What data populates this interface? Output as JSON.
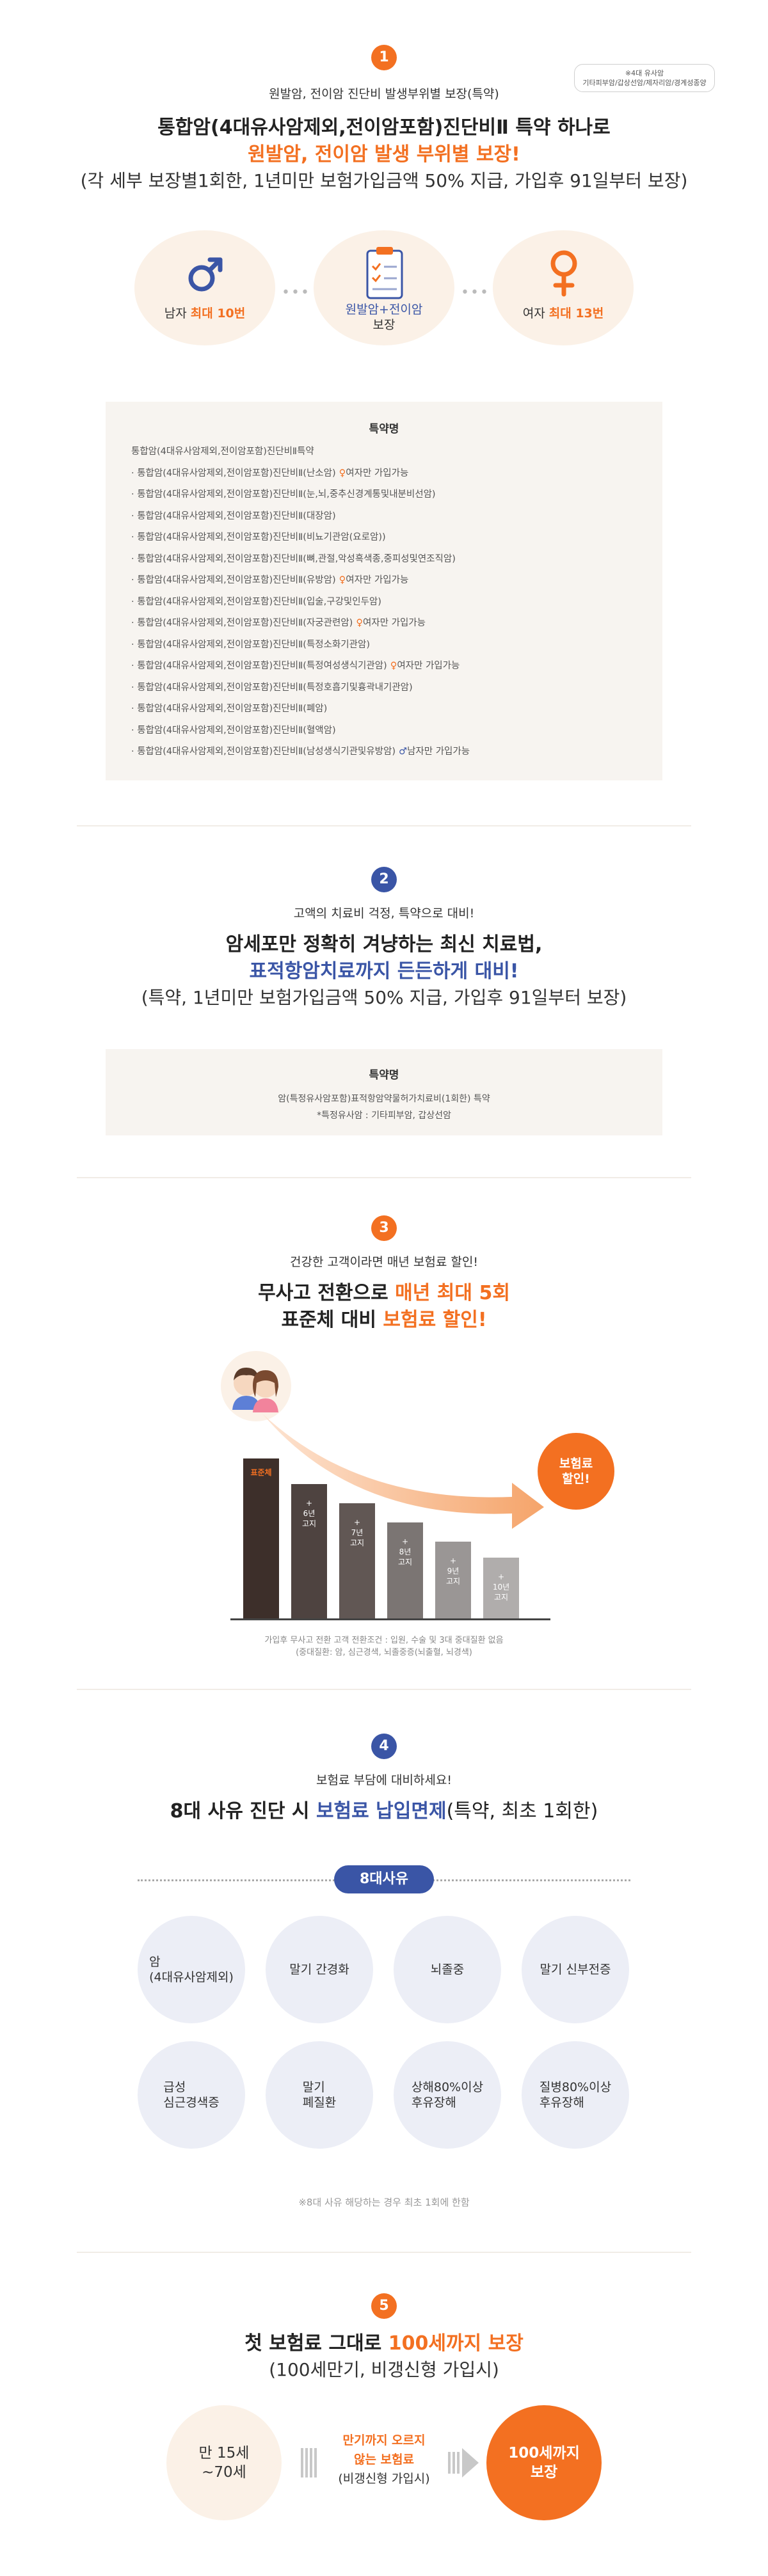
{
  "colors": {
    "accent": "#f37021",
    "brand_blue": "#3a55a6",
    "bg_cream": "#f7f4f0",
    "circle_peach": "#fbf1e7",
    "circle_gray": "#eceef6"
  },
  "s1": {
    "num": "1",
    "note_lines": [
      "※4대 유사암",
      "기타피부암/갑상선암/제자리암/경계성종양"
    ],
    "lead": "원발암, 전이암 진단비 발생부위별 보장(특약)",
    "title": "통합암(4대유사암제외,전이암포함)진단비Ⅱ 특약 하나로",
    "subtitle": "원발암, 전이암 발생 부위별 보장!",
    "note": "(각 세부 보장별1회한, 1년미만 보험가입금액 50% 지급, 가입후 91일부터 보장)",
    "male": {
      "icon": "male-icon",
      "prefix": "남자 ",
      "highlight": "최대 10번"
    },
    "center": {
      "icon": "clipboard-icon",
      "line1": "원발암+전이암",
      "line2": "보장"
    },
    "female": {
      "icon": "female-icon",
      "prefix": "여자 ",
      "highlight": "최대 13번"
    },
    "box_head": "특약명",
    "box_first": "통합암(4대유사암제외,전이암포함)진단비Ⅱ특약",
    "riders": [
      {
        "text": "통합암(4대유사암제외,전이암포함)진단비Ⅱ(난소암)",
        "note": "여자만 가입가능",
        "gender": "female"
      },
      {
        "text": "통합암(4대유사암제외,전이암포함)진단비Ⅱ(눈,뇌,중추신경계통및내분비선암)"
      },
      {
        "text": "통합암(4대유사암제외,전이암포함)진단비Ⅱ(대장암)"
      },
      {
        "text": "통합암(4대유사암제외,전이암포함)진단비Ⅱ(비뇨기관암(요로암))"
      },
      {
        "text": "통합암(4대유사암제외,전이암포함)진단비Ⅱ(뼈,관절,악성흑색종,중피성및연조직암)"
      },
      {
        "text": "통합암(4대유사암제외,전이암포함)진단비Ⅱ(유방암)",
        "note": "여자만 가입가능",
        "gender": "female"
      },
      {
        "text": "통합암(4대유사암제외,전이암포함)진단비Ⅱ(입술,구강및인두암)"
      },
      {
        "text": "통합암(4대유사암제외,전이암포함)진단비Ⅱ(자궁관련암)",
        "note": "여자만 가입가능",
        "gender": "female"
      },
      {
        "text": "통합암(4대유사암제외,전이암포함)진단비Ⅱ(특정소화기관암)"
      },
      {
        "text": "통합암(4대유사암제외,전이암포함)진단비Ⅱ(특정여성생식기관암)",
        "note": "여자만 가입가능",
        "gender": "female"
      },
      {
        "text": "통합암(4대유사암제외,전이암포함)진단비Ⅱ(특정호흡기및흉곽내기관암)"
      },
      {
        "text": "통합암(4대유사암제외,전이암포함)진단비Ⅱ(폐암)"
      },
      {
        "text": "통합암(4대유사암제외,전이암포함)진단비Ⅱ(혈액암)"
      },
      {
        "text": "통합암(4대유사암제외,전이암포함)진단비Ⅱ(남성생식기관및유방암)",
        "note": "남자만 가입가능",
        "gender": "male"
      }
    ]
  },
  "s2": {
    "num": "2",
    "lead": "고액의 치료비 걱정, 특약으로 대비!",
    "title": "암세포만 정확히 겨냥하는 최신 치료법,",
    "subtitle": "표적항암치료까지 든든하게 대비!",
    "note": "(특약, 1년미만 보험가입금액 50% 지급, 가입후 91일부터 보장)",
    "box_head": "특약명",
    "box_line1": "암(특정유사암포함)표적항암약물허가치료비(1회한) 특약",
    "box_line2": "*특정유사암 : 기타피부암, 갑상선암"
  },
  "s3": {
    "num": "3",
    "lead": "건강한 고객이라면 매년 보험료 할인!",
    "title_prefix": "무사고 전환으로 ",
    "title_highlight": "매년 최대 5회",
    "sub_prefix": "표준체 대비 ",
    "sub_highlight": "보험료 할인!",
    "avatar_icon": "couple-avatar-icon",
    "bars": [
      {
        "label": "표준체",
        "level": 1.0,
        "plus": ""
      },
      {
        "label": "6년\n고지",
        "level": 0.84,
        "plus": "+"
      },
      {
        "label": "7년\n고지",
        "level": 0.72,
        "plus": "+"
      },
      {
        "label": "8년\n고지",
        "level": 0.6,
        "plus": "+"
      },
      {
        "label": "9년\n고지",
        "level": 0.48,
        "plus": "+"
      },
      {
        "label": "10년\n고지",
        "level": 0.38,
        "plus": "+"
      }
    ],
    "result_line1": "보험료",
    "result_line2": "할인!",
    "foot1": "가입후 무사고 전환 고객 전환조건 : 입원, 수술 및 3대 중대질환 없음",
    "foot2": "(중대질환: 암, 심근경색, 뇌졸중증(뇌출혈, 뇌경색)"
  },
  "s4": {
    "num": "4",
    "lead": "보험료 부담에 대비하세요!",
    "title_prefix": "8대 사유 진단 시 ",
    "title_highlight": "보험료 납입면제",
    "title_suffix": "(특약, 최초 1회한)",
    "pill": "8대사유",
    "reasons": [
      "암\n(4대유사암제외)",
      "말기 간경화",
      "뇌졸중",
      "말기 신부전증",
      "급성\n심근경색증",
      "말기\n폐질환",
      "상해80%이상\n후유장해",
      "질병80%이상\n후유장해"
    ],
    "foot": "※8대 사유 해당하는 경우 최초 1회에 한함"
  },
  "s5": {
    "num": "5",
    "title_prefix": "첫 보험료 그대로 ",
    "title_highlight": "100세까지 보장",
    "note": "(100세만기, 비갱신형 가입시)",
    "age_line1": "만 15세",
    "age_line2": "~70세",
    "mid_line1": "만기까지 오르지",
    "mid_line2": "않는 보험료",
    "mid_line3": "(비갱신형 가입시)",
    "result_line1": "100세까지",
    "result_line2": "보장"
  }
}
